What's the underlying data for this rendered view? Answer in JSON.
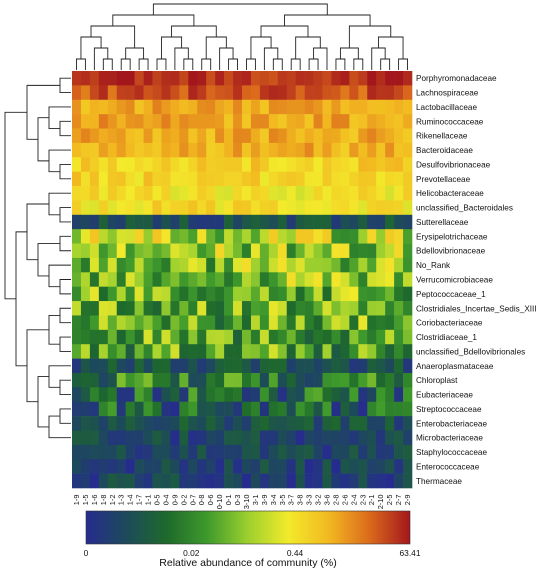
{
  "chart_data": {
    "type": "heatmap",
    "title": "",
    "columns": [
      "1-9",
      "1-5",
      "1-6",
      "1-8",
      "1-2",
      "1-3",
      "1-4",
      "1-7",
      "1-1",
      "0-5",
      "0-4",
      "0-9",
      "0-2",
      "0-7",
      "0-8",
      "0-6",
      "0-10",
      "0-1",
      "0-3",
      "3-10",
      "3-1",
      "3-9",
      "3-4",
      "3-5",
      "3-7",
      "3-8",
      "3-3",
      "3-2",
      "3-6",
      "2-8",
      "2-6",
      "2-4",
      "2-3",
      "2-1",
      "2-10",
      "2-5",
      "2-7",
      "2-9"
    ],
    "rows": [
      "Porphyromonadaceae",
      "Lachnospiraceae",
      "Lactobacillaceae",
      "Ruminococcaceae",
      "Rikenellaceae",
      "Bacteroidaceae",
      "Desulfovibrionaceae",
      "Prevotellaceae",
      "Helicobacteraceae",
      "unclassified_Bacteroidales",
      "Sutterellaceae",
      "Erysipelotrichaceae",
      "Bdellovibrionaceae",
      "No_Rank",
      "Verrucomicrobiaceae",
      "Peptococcaceae_1",
      "Clostridiales_Incertae_Sedis_XIII",
      "Coriobacteriaceae",
      "Clostridiaceae_1",
      "unclassified_Bdellovibrionales",
      "Anaeroplasmataceae",
      "Chloroplast",
      "Eubacteriaceae",
      "Streptococcaceae",
      "Enterobacteriaceae",
      "Microbacteriaceae",
      "Staphylococcaceae",
      "Enterococcaceae",
      "Thermaceae"
    ],
    "row_levels": [
      0.97,
      0.91,
      0.77,
      0.78,
      0.77,
      0.76,
      0.69,
      0.68,
      0.64,
      0.66,
      0.13,
      0.52,
      0.5,
      0.47,
      0.46,
      0.44,
      0.42,
      0.41,
      0.4,
      0.38,
      0.14,
      0.27,
      0.22,
      0.2,
      0.14,
      0.1,
      0.1,
      0.09,
      0.09
    ],
    "scale": {
      "ticks": [
        "0",
        "0.02",
        "0.44",
        "63.41"
      ],
      "label": "Relative abundance of community (%)",
      "colors": [
        "#262c8e",
        "#1d4a5a",
        "#1e6a2b",
        "#3f9a2c",
        "#9cd02e",
        "#f3ea2b",
        "#f2b820",
        "#db6a1c",
        "#a3171c"
      ]
    }
  }
}
